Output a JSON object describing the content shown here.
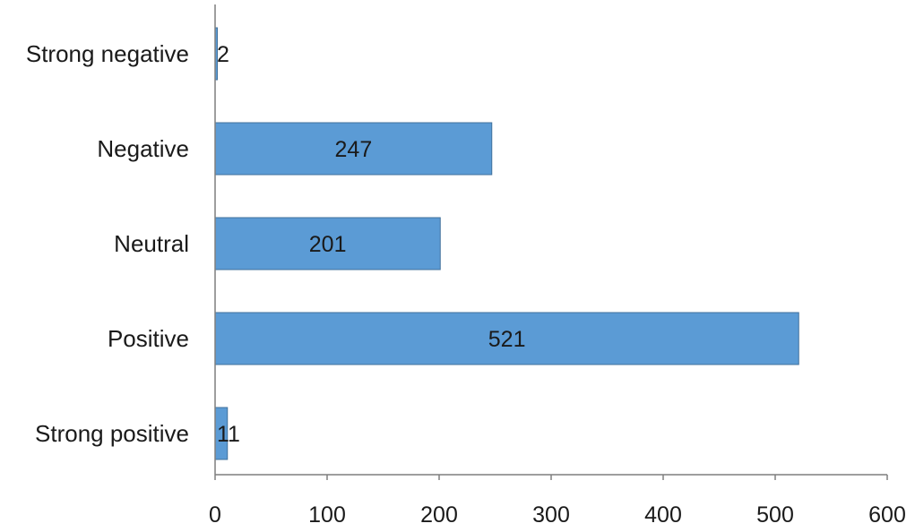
{
  "chart_data": {
    "type": "bar",
    "orientation": "horizontal",
    "categories": [
      "Strong negative",
      "Negative",
      "Neutral",
      "Positive",
      "Strong positive"
    ],
    "values": [
      2,
      247,
      201,
      521,
      11
    ],
    "data_labels": [
      "2",
      "247",
      "201",
      "521",
      "11"
    ],
    "xlim": [
      0,
      600
    ],
    "x_ticks": [
      0,
      100,
      200,
      300,
      400,
      500,
      600
    ],
    "x_tick_labels": [
      "0",
      "100",
      "200",
      "300",
      "400",
      "500",
      "600"
    ],
    "title": "",
    "xlabel": "",
    "ylabel": "",
    "grid": false,
    "legend": "none",
    "bar_color": "#5b9bd5",
    "bar_edge_color": "#41719c",
    "axis_color": "#7f7f7f"
  }
}
